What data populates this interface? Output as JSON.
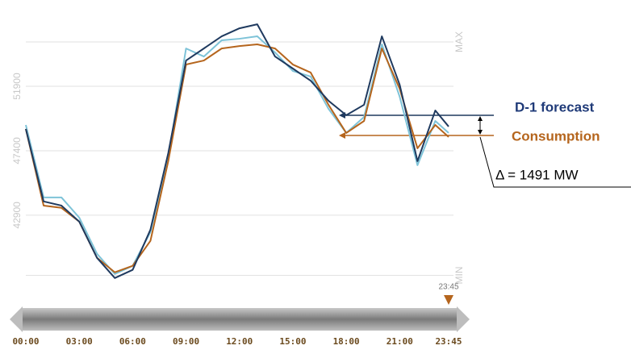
{
  "chart_data": {
    "type": "line",
    "x": [
      0,
      1,
      2,
      3,
      4,
      5,
      6,
      7,
      8,
      9,
      10,
      11,
      12,
      13,
      14,
      15,
      16,
      17,
      18,
      19,
      20,
      21,
      22,
      23,
      23.75
    ],
    "xlim": [
      0,
      23.75
    ],
    "xticks": [
      {
        "value": 0,
        "label": "00:00"
      },
      {
        "value": 3,
        "label": "03:00"
      },
      {
        "value": 6,
        "label": "06:00"
      },
      {
        "value": 9,
        "label": "09:00"
      },
      {
        "value": 12,
        "label": "12:00"
      },
      {
        "value": 15,
        "label": "15:00"
      },
      {
        "value": 18,
        "label": "18:00"
      },
      {
        "value": 21,
        "label": "21:00"
      },
      {
        "value": 23.75,
        "label": "23:45"
      }
    ],
    "ylim": [
      38500,
      56800
    ],
    "yticks": [
      {
        "value": 38700,
        "label": "MIN"
      },
      42900,
      47400,
      51900,
      {
        "value": 55000,
        "label": "MAX"
      }
    ],
    "grid": true,
    "series": [
      {
        "color": "#7ec3d8",
        "values": [
          49200,
          44140,
          44140,
          42730,
          40200,
          38790,
          39360,
          41720,
          46950,
          54540,
          53980,
          55110,
          55220,
          55390,
          54260,
          52970,
          52580,
          50330,
          48640,
          49760,
          54830,
          51170,
          46390,
          49480,
          48640
        ]
      },
      {
        "name": "Consumption",
        "color": "#b5651d",
        "values": [
          48920,
          43570,
          43410,
          42450,
          39920,
          38910,
          39360,
          41110,
          46670,
          53420,
          53700,
          54540,
          54710,
          54830,
          54540,
          53420,
          52860,
          50610,
          48640,
          49480,
          54540,
          51730,
          47570,
          49200,
          48360
        ]
      },
      {
        "name": "D-1 forecast",
        "color": "#1f3a5f",
        "values": [
          48920,
          43860,
          43570,
          42450,
          39920,
          38510,
          39080,
          41890,
          47230,
          53700,
          54540,
          55390,
          55950,
          56230,
          53980,
          53140,
          52290,
          50890,
          49880,
          50610,
          55390,
          52010,
          46670,
          50210,
          49090
        ]
      }
    ],
    "annotations": {
      "delta": "Δ = 1491 MW",
      "marker": "23:45"
    }
  }
}
